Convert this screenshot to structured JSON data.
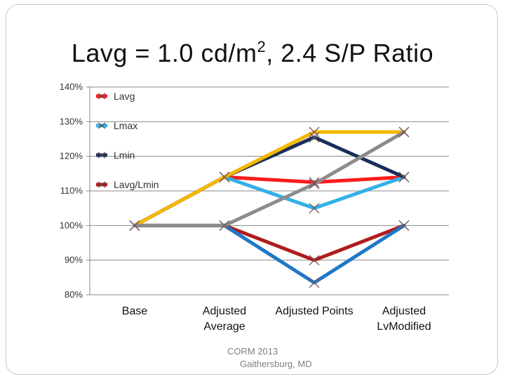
{
  "slide": {
    "title_prefix": "Lavg = 1.0 cd/m",
    "title_sup": "2",
    "title_suffix": ", 2.4 S/P Ratio",
    "footer_line1": "CORM 2013",
    "footer_line2": "Gaithersburg, MD"
  },
  "chart_data": {
    "type": "line",
    "title": "Lavg = 1.0 cd/m2, 2.4 S/P Ratio",
    "xlabel": "",
    "ylabel": "",
    "ylim": [
      80,
      140
    ],
    "yticks": [
      80,
      90,
      100,
      110,
      120,
      130,
      140
    ],
    "ytick_labels": [
      "80%",
      "90%",
      "100%",
      "110%",
      "120%",
      "130%",
      "140%"
    ],
    "grid": true,
    "legend_position": "top-left",
    "categories": [
      "Base",
      "Adjusted Average",
      "Adjusted Points",
      "Adjusted LvModified"
    ],
    "category_lines": [
      [
        "Base"
      ],
      [
        "Adjusted",
        "Average"
      ],
      [
        "Adjusted Points"
      ],
      [
        "Adjusted",
        "LvModified"
      ]
    ],
    "series": [
      {
        "name": "Lavg",
        "color": "#ff1a1a",
        "values": [
          100,
          114,
          112.5,
          114
        ],
        "in_legend": true
      },
      {
        "name": "Lmax",
        "color": "#33b0e8",
        "values": [
          100,
          114,
          105,
          114
        ],
        "in_legend": true
      },
      {
        "name": "Lmin",
        "color": "#1a2e5c",
        "values": [
          100,
          114,
          125.5,
          114
        ],
        "in_legend": true
      },
      {
        "name": "Lavg/Lmin",
        "color": "#b01c1c",
        "values": [
          100,
          100,
          90,
          100
        ],
        "in_legend": true
      },
      {
        "name": "",
        "color": "#1f78c8",
        "values": [
          100,
          100,
          83.5,
          100
        ],
        "in_legend": false
      },
      {
        "name": "",
        "color": "#f5b800",
        "values": [
          100,
          114,
          127,
          127
        ],
        "in_legend": false
      },
      {
        "name": "",
        "color": "#8c8c8c",
        "values": [
          100,
          100,
          112,
          127
        ],
        "in_legend": false
      }
    ]
  }
}
